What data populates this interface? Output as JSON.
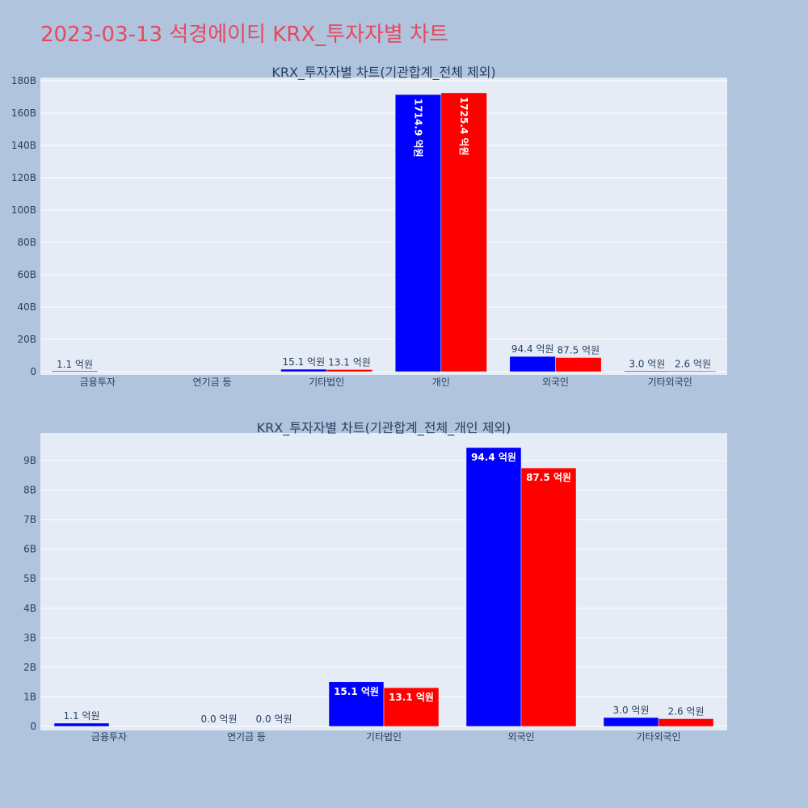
{
  "page": {
    "title": "2023-03-13 석경에이티 KRX_투자자별 차트"
  },
  "colors": {
    "series_a": "#0000ff",
    "series_b": "#ff0000"
  },
  "chart_data": [
    {
      "type": "bar",
      "title": "KRX_투자자별 차트(기관합계_전체 제외)",
      "categories": [
        "금융투자",
        "연기금 등",
        "기타법인",
        "개인",
        "외국인",
        "기타외국인"
      ],
      "yticks": [
        0,
        20,
        40,
        60,
        80,
        100,
        120,
        140,
        160,
        180
      ],
      "ytick_labels": [
        "0",
        "20B",
        "40B",
        "60B",
        "80B",
        "100B",
        "120B",
        "140B",
        "160B",
        "180B"
      ],
      "ylim": [
        0,
        182
      ],
      "series": [
        {
          "values": [
            0.11,
            null,
            1.51,
            171.49,
            9.44,
            0.3
          ],
          "labels": [
            "1.1 억원",
            "",
            "15.1 억원",
            "1714.9 억원",
            "94.4 억원",
            "3.0 억원"
          ]
        },
        {
          "values": [
            null,
            null,
            1.31,
            172.54,
            8.75,
            0.26
          ],
          "labels": [
            "",
            "",
            "13.1 억원",
            "1725.4 억원",
            "87.5 억원",
            "2.6 억원"
          ]
        }
      ]
    },
    {
      "type": "bar",
      "title": "KRX_투자자별 차트(기관합계_전체_개인 제외)",
      "categories": [
        "금융투자",
        "연기금 등",
        "기타법인",
        "외국인",
        "기타외국인"
      ],
      "yticks": [
        0,
        1,
        2,
        3,
        4,
        5,
        6,
        7,
        8,
        9
      ],
      "ytick_labels": [
        "0",
        "1B",
        "2B",
        "3B",
        "4B",
        "5B",
        "6B",
        "7B",
        "8B",
        "9B"
      ],
      "ylim": [
        0,
        9.93
      ],
      "series": [
        {
          "values": [
            0.11,
            0.0,
            1.51,
            9.44,
            0.3
          ],
          "labels": [
            "1.1 억원",
            "0.0 억원",
            "15.1 억원",
            "94.4 억원",
            "3.0 억원"
          ]
        },
        {
          "values": [
            null,
            0.0,
            1.31,
            8.75,
            0.26
          ],
          "labels": [
            "",
            "0.0 억원",
            "13.1 억원",
            "87.5 억원",
            "2.6 억원"
          ]
        }
      ]
    }
  ]
}
